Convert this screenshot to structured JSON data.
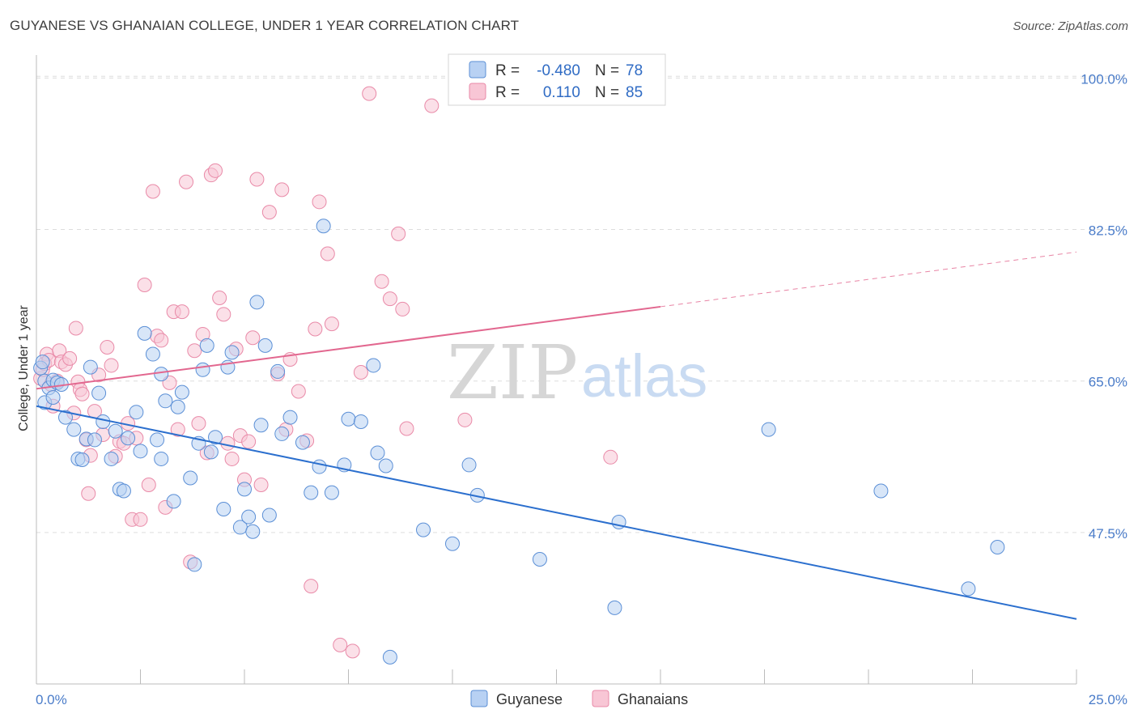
{
  "title": "GUYANESE VS GHANAIAN COLLEGE, UNDER 1 YEAR CORRELATION CHART",
  "source": "Source: ZipAtlas.com",
  "watermark": {
    "zip": "ZIP",
    "atlas": "atlas"
  },
  "colors": {
    "guyanese_fill": "#b8d1f3",
    "guyanese_stroke": "#5b8fd6",
    "guyanese_line": "#2b6fce",
    "ghanaian_fill": "#f8c6d5",
    "ghanaian_stroke": "#e98aa8",
    "ghanaian_line": "#e2678f",
    "tick_label": "#4a7cc9",
    "grid": "#dddddd"
  },
  "legend": {
    "rows": [
      {
        "r_label": "R =",
        "r_value": "-0.480",
        "n_label": "N =",
        "n_value": "78"
      },
      {
        "r_label": "R =",
        "r_value": "0.110",
        "n_label": "N =",
        "n_value": "85"
      }
    ]
  },
  "chart_data": {
    "type": "scatter",
    "title": "GUYANESE VS GHANAIAN COLLEGE, UNDER 1 YEAR CORRELATION CHART",
    "xlabel": "",
    "ylabel": "College, Under 1 year",
    "xlim": [
      0,
      25
    ],
    "ylim": [
      30,
      102
    ],
    "x_tick_labels": [
      "0.0%",
      "25.0%"
    ],
    "y_ticks": [
      47.5,
      65.0,
      82.5,
      100.0
    ],
    "y_tick_labels": [
      "47.5%",
      "65.0%",
      "82.5%",
      "100.0%"
    ],
    "series": [
      {
        "name": "Guyanese",
        "r": -0.48,
        "n": 78,
        "trend": {
          "x0": 0,
          "y0": 62.1,
          "x1": 25,
          "y1": 37.5,
          "dashed_from": null
        },
        "points": [
          [
            0.1,
            66.5
          ],
          [
            0.15,
            67.2
          ],
          [
            0.2,
            65.0
          ],
          [
            0.3,
            64.2
          ],
          [
            0.4,
            65.1
          ],
          [
            0.5,
            64.8
          ],
          [
            0.6,
            64.6
          ],
          [
            0.2,
            62.5
          ],
          [
            0.4,
            63.1
          ],
          [
            0.7,
            60.8
          ],
          [
            0.9,
            59.4
          ],
          [
            1.0,
            56.0
          ],
          [
            1.1,
            55.9
          ],
          [
            1.2,
            58.3
          ],
          [
            1.3,
            66.6
          ],
          [
            1.4,
            58.2
          ],
          [
            1.5,
            63.6
          ],
          [
            1.6,
            60.3
          ],
          [
            1.8,
            56.0
          ],
          [
            1.9,
            59.2
          ],
          [
            2.0,
            52.5
          ],
          [
            2.1,
            52.3
          ],
          [
            2.2,
            58.4
          ],
          [
            2.4,
            61.4
          ],
          [
            2.5,
            56.9
          ],
          [
            2.6,
            70.5
          ],
          [
            2.8,
            68.1
          ],
          [
            2.9,
            58.2
          ],
          [
            3.0,
            65.8
          ],
          [
            3.1,
            62.7
          ],
          [
            3.3,
            51.1
          ],
          [
            3.4,
            62.0
          ],
          [
            3.5,
            63.7
          ],
          [
            3.7,
            53.8
          ],
          [
            3.8,
            43.8
          ],
          [
            3.9,
            57.8
          ],
          [
            4.0,
            66.3
          ],
          [
            4.1,
            69.1
          ],
          [
            4.2,
            56.8
          ],
          [
            4.3,
            58.5
          ],
          [
            4.5,
            50.2
          ],
          [
            4.6,
            66.6
          ],
          [
            4.7,
            68.3
          ],
          [
            4.9,
            48.1
          ],
          [
            5.0,
            52.5
          ],
          [
            5.1,
            49.3
          ],
          [
            5.2,
            47.6
          ],
          [
            5.3,
            74.1
          ],
          [
            5.4,
            59.9
          ],
          [
            5.5,
            69.1
          ],
          [
            5.6,
            49.5
          ],
          [
            5.8,
            66.1
          ],
          [
            5.9,
            58.9
          ],
          [
            6.1,
            60.8
          ],
          [
            6.4,
            57.9
          ],
          [
            6.6,
            52.1
          ],
          [
            6.8,
            55.1
          ],
          [
            6.9,
            82.9
          ],
          [
            7.1,
            52.1
          ],
          [
            7.4,
            55.3
          ],
          [
            7.5,
            60.6
          ],
          [
            7.8,
            60.3
          ],
          [
            8.1,
            66.8
          ],
          [
            8.2,
            56.7
          ],
          [
            8.4,
            55.2
          ],
          [
            9.3,
            47.8
          ],
          [
            10.0,
            46.2
          ],
          [
            10.4,
            55.3
          ],
          [
            10.6,
            51.8
          ],
          [
            12.1,
            44.4
          ],
          [
            13.9,
            38.8
          ],
          [
            14.0,
            48.7
          ],
          [
            17.6,
            59.4
          ],
          [
            20.3,
            52.3
          ],
          [
            23.1,
            45.8
          ],
          [
            22.4,
            41.0
          ],
          [
            8.5,
            33.1
          ],
          [
            3.0,
            56.0
          ]
        ]
      },
      {
        "name": "Ghanaians",
        "r": 0.11,
        "n": 85,
        "trend": {
          "x0": 0,
          "y0": 64.1,
          "x1": 25,
          "y1": 79.9,
          "dashed_from": 15.0
        },
        "points": [
          [
            0.1,
            65.3
          ],
          [
            0.15,
            66.3
          ],
          [
            0.2,
            67.0
          ],
          [
            0.25,
            68.1
          ],
          [
            0.3,
            67.4
          ],
          [
            0.35,
            64.6
          ],
          [
            0.4,
            62.1
          ],
          [
            0.5,
            65.0
          ],
          [
            0.55,
            68.5
          ],
          [
            0.6,
            67.2
          ],
          [
            0.7,
            66.9
          ],
          [
            0.8,
            67.6
          ],
          [
            0.9,
            61.3
          ],
          [
            0.95,
            71.1
          ],
          [
            1.0,
            64.9
          ],
          [
            1.05,
            64.0
          ],
          [
            1.1,
            63.5
          ],
          [
            1.2,
            58.2
          ],
          [
            1.25,
            52.0
          ],
          [
            1.3,
            56.4
          ],
          [
            1.4,
            61.5
          ],
          [
            1.5,
            65.7
          ],
          [
            1.6,
            58.8
          ],
          [
            1.7,
            68.9
          ],
          [
            1.8,
            66.8
          ],
          [
            1.9,
            56.3
          ],
          [
            2.0,
            58.0
          ],
          [
            2.1,
            57.8
          ],
          [
            2.2,
            60.1
          ],
          [
            2.3,
            49.0
          ],
          [
            2.4,
            58.4
          ],
          [
            2.5,
            49.0
          ],
          [
            2.6,
            76.1
          ],
          [
            2.7,
            53.0
          ],
          [
            2.8,
            86.9
          ],
          [
            2.9,
            70.2
          ],
          [
            3.0,
            69.7
          ],
          [
            3.1,
            50.4
          ],
          [
            3.2,
            64.8
          ],
          [
            3.3,
            73.0
          ],
          [
            3.4,
            59.4
          ],
          [
            3.5,
            73.0
          ],
          [
            3.6,
            88.0
          ],
          [
            3.7,
            44.1
          ],
          [
            3.8,
            68.5
          ],
          [
            3.9,
            60.1
          ],
          [
            4.0,
            70.4
          ],
          [
            4.1,
            56.7
          ],
          [
            4.2,
            88.8
          ],
          [
            4.3,
            89.3
          ],
          [
            4.4,
            74.6
          ],
          [
            4.5,
            72.7
          ],
          [
            4.6,
            57.8
          ],
          [
            4.7,
            56.0
          ],
          [
            4.8,
            68.7
          ],
          [
            4.9,
            58.7
          ],
          [
            5.0,
            53.6
          ],
          [
            5.1,
            58.0
          ],
          [
            5.2,
            70.0
          ],
          [
            5.3,
            88.3
          ],
          [
            5.4,
            53.0
          ],
          [
            5.6,
            84.5
          ],
          [
            5.8,
            65.8
          ],
          [
            5.9,
            87.1
          ],
          [
            6.0,
            59.4
          ],
          [
            6.1,
            67.5
          ],
          [
            6.3,
            63.8
          ],
          [
            6.5,
            58.1
          ],
          [
            6.6,
            41.3
          ],
          [
            6.7,
            71.0
          ],
          [
            6.8,
            85.7
          ],
          [
            7.0,
            79.7
          ],
          [
            7.1,
            71.6
          ],
          [
            7.3,
            34.5
          ],
          [
            7.6,
            33.8
          ],
          [
            7.8,
            66.0
          ],
          [
            8.0,
            98.2
          ],
          [
            8.3,
            76.5
          ],
          [
            8.5,
            74.5
          ],
          [
            8.7,
            82.0
          ],
          [
            8.8,
            73.3
          ],
          [
            8.9,
            59.5
          ],
          [
            9.5,
            96.8
          ],
          [
            10.3,
            60.5
          ],
          [
            13.8,
            56.2
          ]
        ]
      }
    ]
  },
  "bottom_legend": [
    {
      "label": "Guyanese"
    },
    {
      "label": "Ghanaians"
    }
  ]
}
